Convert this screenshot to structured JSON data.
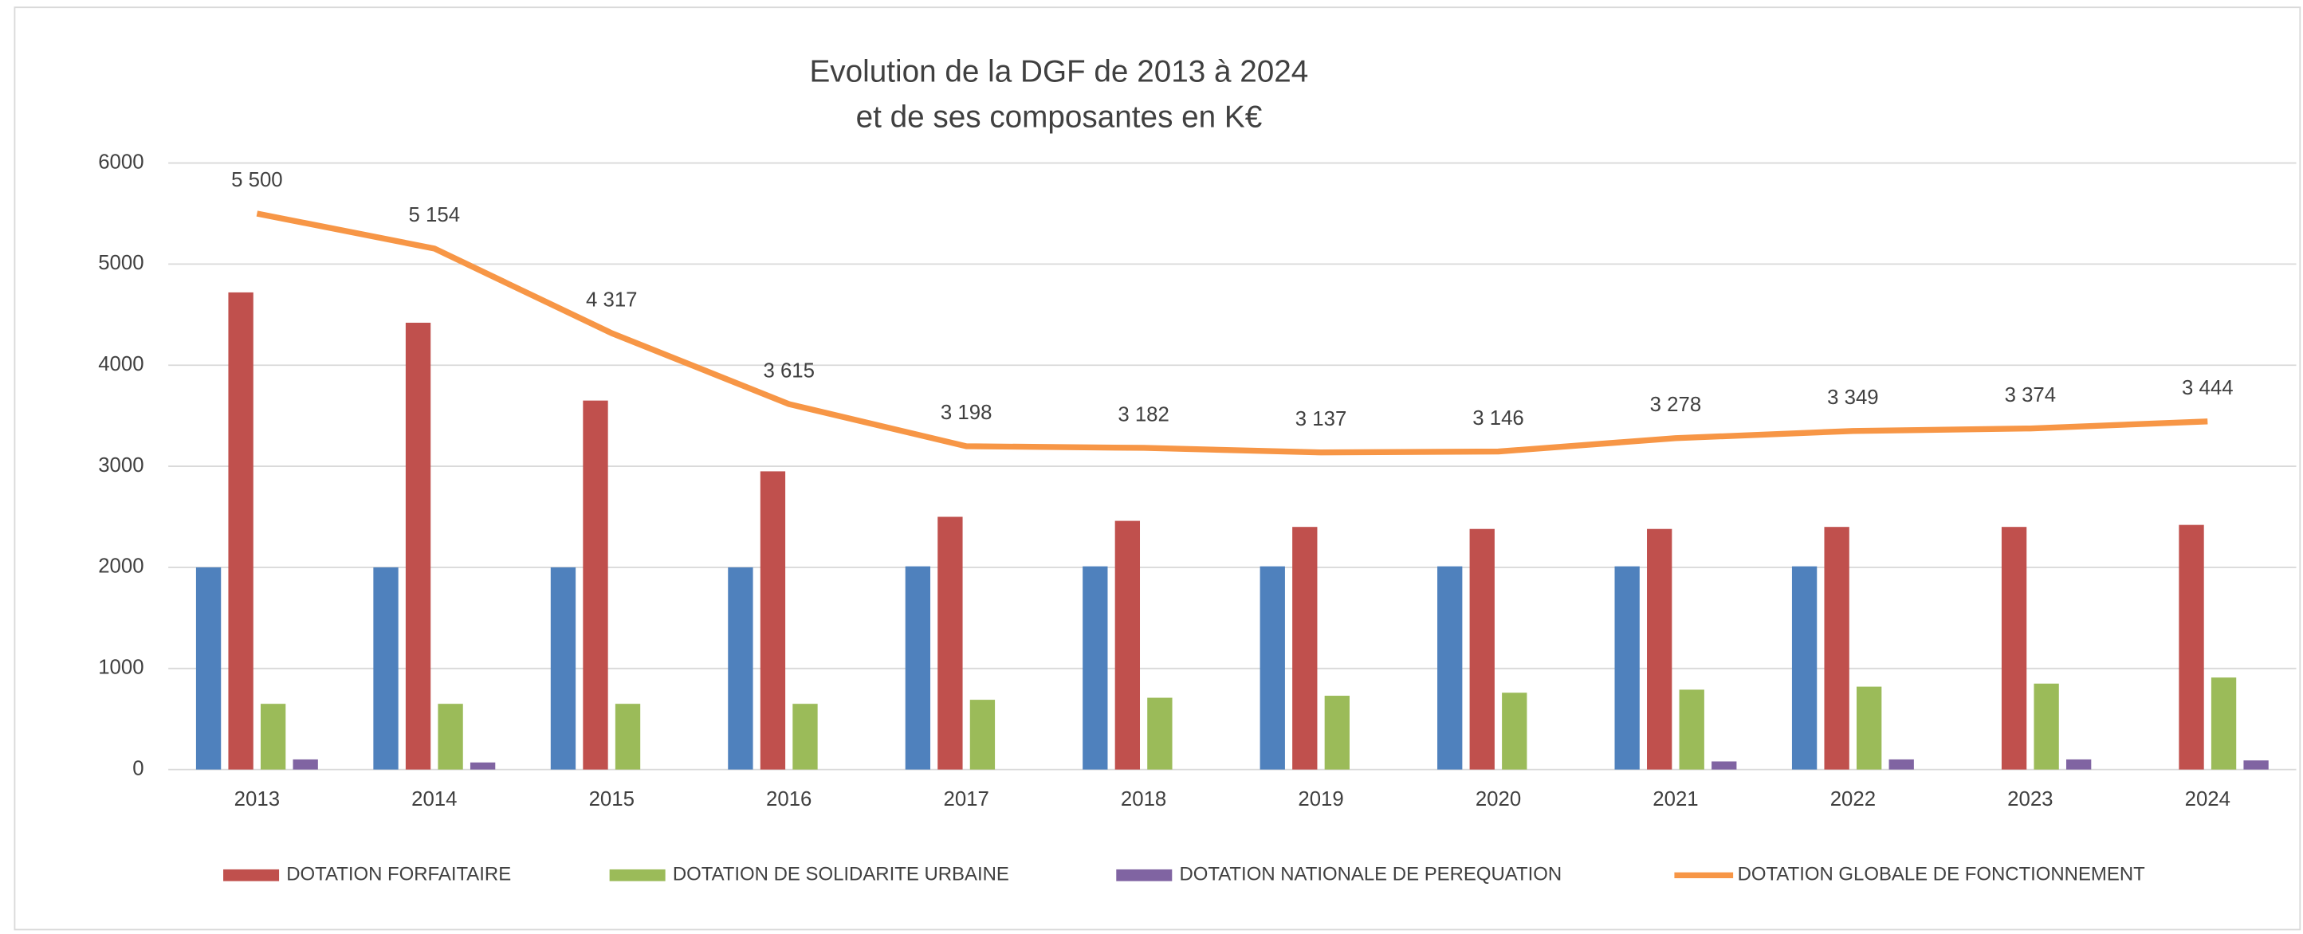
{
  "chart_data": {
    "type": "bar",
    "title": [
      "Evolution de la DGF de 2013 à 2024",
      "et de ses composantes en K€"
    ],
    "categories": [
      "2013",
      "2014",
      "2015",
      "2016",
      "2017",
      "2018",
      "2019",
      "2020",
      "2021",
      "2022",
      "2023",
      "2024"
    ],
    "series": [
      {
        "name": null,
        "color": "#4f81bd",
        "type": "bar",
        "values": [
          2000,
          2000,
          2000,
          2000,
          2010,
          2010,
          2010,
          2010,
          2010,
          2010,
          null,
          null
        ]
      },
      {
        "name": "DOTATION FORFAITAIRE",
        "color": "#c0504d",
        "type": "bar",
        "values": [
          4720,
          4420,
          3650,
          2950,
          2500,
          2460,
          2400,
          2380,
          2380,
          2400,
          2400,
          2420
        ]
      },
      {
        "name": "DOTATION DE SOLIDARITE URBAINE",
        "color": "#9bbb59",
        "type": "bar",
        "values": [
          650,
          650,
          650,
          650,
          690,
          710,
          730,
          760,
          790,
          820,
          850,
          910
        ]
      },
      {
        "name": "DOTATION NATIONALE DE PEREQUATION",
        "color": "#8064a2",
        "type": "bar",
        "values": [
          100,
          70,
          null,
          null,
          null,
          null,
          null,
          null,
          80,
          100,
          100,
          90
        ]
      },
      {
        "name": "DOTATION GLOBALE DE FONCTIONNEMENT",
        "color": "#f79646",
        "type": "line",
        "values": [
          5500,
          5154,
          4317,
          3615,
          3198,
          3182,
          3137,
          3146,
          3278,
          3349,
          3374,
          3444
        ],
        "value_labels": [
          "5 500",
          "5 154",
          "4 317",
          "3 615",
          "3 198",
          "3 182",
          "3 137",
          "3 146",
          "3 278",
          "3 349",
          "3 374",
          "3 444"
        ]
      }
    ],
    "ylim": [
      0,
      6000
    ],
    "yticks": [
      0,
      1000,
      2000,
      3000,
      4000,
      5000,
      6000
    ],
    "grid": true,
    "legend": "bottom"
  }
}
